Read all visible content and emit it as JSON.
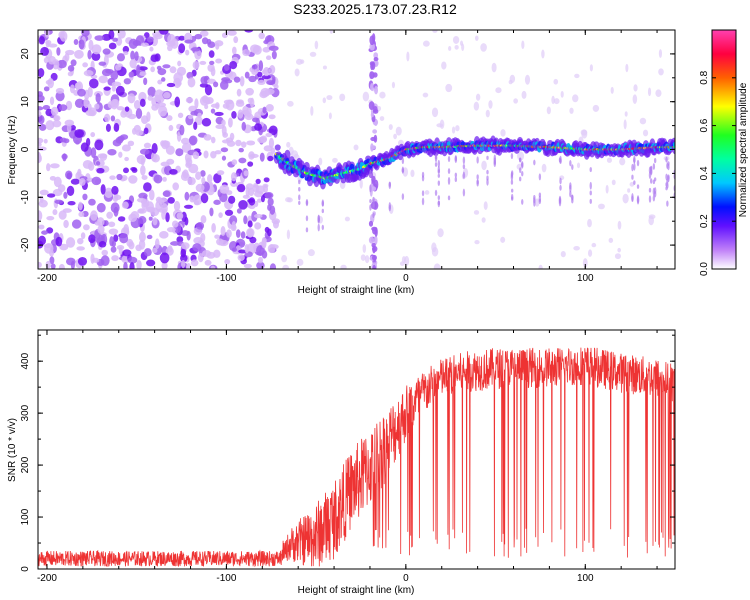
{
  "chart_data": [
    {
      "type": "heatmap",
      "title": "S233.2025.173.07.23.R12",
      "xlabel": "Height of straight line (km)",
      "ylabel": "Frequency (Hz)",
      "xlim": [
        -205,
        150
      ],
      "ylim": [
        -25,
        25
      ],
      "xticks": [
        -200,
        -100,
        0,
        100
      ],
      "yticks": [
        -20,
        -10,
        0,
        10,
        20
      ],
      "colorbar": {
        "label": "Normalized spectral amplitude",
        "range": [
          0,
          1
        ],
        "ticks": [
          "0.0",
          "0.2",
          "0.4",
          "0.6",
          "0.8"
        ],
        "colors": [
          "#ffffff",
          "#9a3cf0",
          "#2020ff",
          "#00e0e0",
          "#20e020",
          "#ffff00",
          "#ff4000",
          "#ff20a0"
        ]
      },
      "trace": {
        "description_points_x": [
          -72,
          -65,
          -55,
          -45,
          -35,
          -25,
          -20,
          -15,
          -10,
          0,
          10,
          20,
          40,
          60,
          80,
          100,
          120,
          140,
          150
        ],
        "freq_hz": [
          -1,
          -3,
          -5,
          -6,
          -5,
          -4,
          -3,
          -2.5,
          -2,
          0,
          0.5,
          0.5,
          0.8,
          0.8,
          0.5,
          0,
          0,
          0.5,
          0.5
        ]
      }
    },
    {
      "type": "line",
      "xlabel": "Height of straight line (km)",
      "ylabel": "SNR (10 * v/v)",
      "xlim": [
        -205,
        150
      ],
      "ylim": [
        0,
        460
      ],
      "xticks": [
        -200,
        -100,
        0,
        100
      ],
      "yticks": [
        0,
        100,
        200,
        300,
        400
      ],
      "series": [
        {
          "color": "#ee3333",
          "envelope_x": [
            -205,
            -70,
            -65,
            -50,
            -40,
            -30,
            -20,
            -10,
            0,
            10,
            20,
            30,
            40,
            60,
            80,
            100,
            120,
            140,
            150
          ],
          "envelope_mean": [
            18,
            18,
            40,
            50,
            80,
            140,
            180,
            230,
            290,
            330,
            360,
            370,
            375,
            380,
            380,
            385,
            370,
            360,
            350
          ],
          "envelope_max": [
            35,
            35,
            95,
            170,
            220,
            280,
            320,
            360,
            390,
            410,
            430,
            440,
            450,
            450,
            450,
            455,
            440,
            430,
            420
          ]
        }
      ]
    }
  ]
}
